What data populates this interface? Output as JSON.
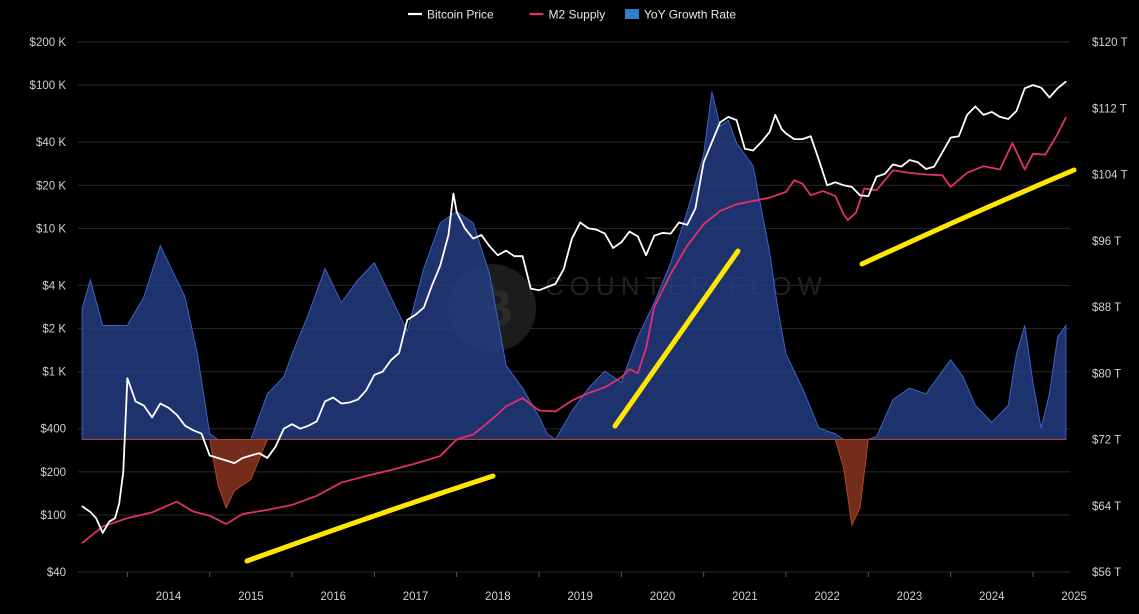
{
  "chart_data": {
    "type": "line",
    "title": "",
    "legend": [
      {
        "name": "Bitcoin Price",
        "color": "#ffffff",
        "marker": "line"
      },
      {
        "name": "M2 Supply",
        "color": "#e0306e",
        "marker": "line"
      },
      {
        "name": "YoY Growth Rate",
        "color": "#2e7fc9",
        "marker": "area"
      }
    ],
    "legend_position": "top-center",
    "watermark": "COUNTER FLOW",
    "grid": true,
    "x_axis": {
      "type": "time",
      "range": [
        2013.4,
        2025.45
      ],
      "ticks": [
        2014,
        2015,
        2016,
        2017,
        2018,
        2019,
        2020,
        2021,
        2022,
        2023,
        2024,
        2025
      ],
      "tick_labels": [
        "2014",
        "2015",
        "2016",
        "2017",
        "2018",
        "2019",
        "2020",
        "2021",
        "2022",
        "2023",
        "2024",
        "2025"
      ]
    },
    "y_left": {
      "scale": "log",
      "range": [
        40,
        200000
      ],
      "ticks": [
        40,
        100,
        200,
        400,
        1000,
        2000,
        4000,
        10000,
        20000,
        40000,
        100000,
        200000
      ],
      "tick_labels": [
        "$40",
        "$100",
        "$200",
        "$400",
        "$1 K",
        "$2 K",
        "$4 K",
        "$10 K",
        "$20 K",
        "$40 K",
        "$100 K",
        "$200 K"
      ]
    },
    "y_right": {
      "scale": "linear",
      "range": [
        56,
        120
      ],
      "unit": "T",
      "ticks": [
        56,
        64,
        72,
        80,
        88,
        96,
        104,
        112,
        120
      ],
      "tick_labels": [
        "$56 T",
        "$64 T",
        "$72 T",
        "$80 T",
        "$88 T",
        "$96 T",
        "$104 T",
        "$112 T",
        "$120 T"
      ]
    },
    "series": [
      {
        "name": "Bitcoin Price",
        "axis": "left",
        "color": "#ffffff",
        "x": [
          2013.45,
          2013.55,
          2013.62,
          2013.7,
          2013.78,
          2013.85,
          2013.9,
          2013.95,
          2014.0,
          2014.1,
          2014.2,
          2014.3,
          2014.4,
          2014.5,
          2014.6,
          2014.7,
          2014.8,
          2014.9,
          2015.0,
          2015.1,
          2015.2,
          2015.3,
          2015.4,
          2015.5,
          2015.6,
          2015.7,
          2015.8,
          2015.9,
          2016.0,
          2016.1,
          2016.2,
          2016.3,
          2016.4,
          2016.5,
          2016.6,
          2016.7,
          2016.8,
          2016.9,
          2017.0,
          2017.1,
          2017.2,
          2017.3,
          2017.4,
          2017.5,
          2017.6,
          2017.7,
          2017.8,
          2017.9,
          2017.96,
          2018.0,
          2018.1,
          2018.2,
          2018.3,
          2018.4,
          2018.5,
          2018.6,
          2018.7,
          2018.8,
          2018.9,
          2019.0,
          2019.1,
          2019.2,
          2019.3,
          2019.4,
          2019.5,
          2019.6,
          2019.7,
          2019.8,
          2019.9,
          2020.0,
          2020.1,
          2020.2,
          2020.3,
          2020.4,
          2020.5,
          2020.6,
          2020.7,
          2020.8,
          2020.9,
          2021.0,
          2021.1,
          2021.2,
          2021.3,
          2021.4,
          2021.5,
          2021.6,
          2021.7,
          2021.8,
          2021.87,
          2021.95,
          2022.0,
          2022.1,
          2022.2,
          2022.3,
          2022.4,
          2022.5,
          2022.6,
          2022.7,
          2022.8,
          2022.9,
          2023.0,
          2023.1,
          2023.2,
          2023.3,
          2023.4,
          2023.5,
          2023.6,
          2023.7,
          2023.8,
          2023.9,
          2024.0,
          2024.1,
          2024.2,
          2024.3,
          2024.4,
          2024.5,
          2024.6,
          2024.7,
          2024.8,
          2024.9,
          2025.0,
          2025.1,
          2025.2,
          2025.3,
          2025.4
        ],
        "values": [
          115,
          105,
          95,
          75,
          90,
          95,
          120,
          200,
          900,
          620,
          580,
          480,
          600,
          560,
          500,
          420,
          390,
          370,
          260,
          250,
          240,
          230,
          250,
          260,
          270,
          250,
          300,
          400,
          430,
          400,
          420,
          450,
          620,
          660,
          600,
          610,
          640,
          740,
          950,
          1000,
          1200,
          1350,
          2300,
          2500,
          2800,
          4000,
          5500,
          9000,
          17500,
          13000,
          10000,
          8500,
          9000,
          7500,
          6500,
          7000,
          6400,
          6400,
          3800,
          3700,
          3900,
          4100,
          5200,
          8500,
          11000,
          10000,
          9800,
          9200,
          7300,
          8000,
          9500,
          8800,
          6500,
          8900,
          9300,
          9200,
          11000,
          10600,
          13800,
          29000,
          40000,
          55000,
          60000,
          57000,
          36000,
          35000,
          40000,
          47000,
          62000,
          49000,
          46000,
          42000,
          42000,
          44000,
          30000,
          20000,
          21000,
          20000,
          19500,
          17000,
          16800,
          23000,
          24000,
          28000,
          27000,
          30000,
          29000,
          26000,
          27000,
          34000,
          43000,
          44000,
          62000,
          71000,
          62000,
          65000,
          60000,
          58000,
          66000,
          95000,
          100000,
          96000,
          82000,
          95000,
          106000
        ],
        "dashed_connections": false
      },
      {
        "name": "M2 Supply",
        "axis": "right",
        "color": "#e0306e",
        "x": [
          2013.45,
          2013.7,
          2014.0,
          2014.3,
          2014.6,
          2014.8,
          2015.0,
          2015.2,
          2015.4,
          2015.7,
          2016.0,
          2016.3,
          2016.6,
          2016.9,
          2017.2,
          2017.5,
          2017.8,
          2018.0,
          2018.2,
          2018.4,
          2018.6,
          2018.8,
          2019.0,
          2019.2,
          2019.4,
          2019.6,
          2019.8,
          2020.0,
          2020.1,
          2020.2,
          2020.3,
          2020.4,
          2020.6,
          2020.8,
          2021.0,
          2021.2,
          2021.4,
          2021.6,
          2021.8,
          2022.0,
          2022.1,
          2022.2,
          2022.3,
          2022.45,
          2022.6,
          2022.7,
          2022.75,
          2022.85,
          2022.95,
          2023.1,
          2023.3,
          2023.5,
          2023.7,
          2023.9,
          2024.0,
          2024.2,
          2024.4,
          2024.6,
          2024.75,
          2024.9,
          2025.0,
          2025.15,
          2025.3,
          2025.4
        ],
        "values": [
          59.5,
          61.5,
          62.5,
          63.2,
          64.5,
          63.3,
          62.8,
          61.8,
          63.0,
          63.5,
          64.1,
          65.2,
          66.8,
          67.6,
          68.3,
          69.1,
          70.0,
          72.0,
          72.6,
          74.2,
          76.0,
          77.0,
          75.5,
          75.4,
          76.7,
          77.6,
          78.3,
          79.5,
          80.5,
          80.0,
          83.0,
          88.0,
          92.0,
          95.4,
          98.0,
          99.6,
          100.4,
          100.8,
          101.2,
          101.9,
          103.3,
          102.9,
          101.5,
          102.0,
          101.4,
          99.2,
          98.5,
          99.4,
          102.3,
          102.1,
          104.5,
          104.2,
          104.0,
          103.9,
          102.5,
          104.2,
          105.0,
          104.6,
          107.8,
          104.6,
          106.5,
          106.4,
          108.9,
          110.9
        ],
        "dashed_connections": false
      },
      {
        "name": "YoY Growth Rate",
        "axis": "area",
        "color": "#2e5dbf",
        "negative_color": "#b0432a",
        "baseline_value": 0,
        "x": [
          2013.45,
          2013.55,
          2013.7,
          2013.85,
          2014.0,
          2014.2,
          2014.4,
          2014.5,
          2014.7,
          2014.85,
          2015.0,
          2015.1,
          2015.2,
          2015.3,
          2015.5,
          2015.7,
          2015.9,
          2016.0,
          2016.2,
          2016.4,
          2016.6,
          2016.8,
          2017.0,
          2017.2,
          2017.4,
          2017.6,
          2017.8,
          2018.0,
          2018.2,
          2018.4,
          2018.6,
          2018.8,
          2019.0,
          2019.1,
          2019.2,
          2019.4,
          2019.6,
          2019.8,
          2020.0,
          2020.2,
          2020.4,
          2020.6,
          2020.8,
          2021.0,
          2021.1,
          2021.2,
          2021.3,
          2021.4,
          2021.6,
          2021.8,
          2021.9,
          2022.0,
          2022.2,
          2022.4,
          2022.6,
          2022.7,
          2022.8,
          2022.9,
          2023.0,
          2023.1,
          2023.3,
          2023.5,
          2023.7,
          2023.9,
          2024.0,
          2024.15,
          2024.3,
          2024.5,
          2024.7,
          2024.8,
          2024.9,
          2025.0,
          2025.1,
          2025.2,
          2025.3,
          2025.4
        ],
        "values": [
          2.3,
          2.8,
          2.0,
          2.0,
          2.0,
          2.5,
          3.4,
          3.1,
          2.5,
          1.5,
          0.1,
          -0.8,
          -1.2,
          -0.9,
          -0.7,
          0.8,
          1.1,
          1.5,
          2.2,
          3.0,
          2.4,
          2.8,
          3.1,
          2.5,
          1.9,
          3.0,
          3.8,
          4.0,
          3.8,
          2.9,
          1.3,
          0.9,
          0.4,
          0.1,
          0.0,
          0.5,
          0.9,
          1.2,
          1.0,
          1.8,
          2.4,
          3.1,
          4.0,
          5.0,
          6.1,
          5.5,
          5.6,
          5.2,
          4.8,
          3.3,
          2.3,
          1.5,
          0.9,
          0.2,
          0.1,
          -0.5,
          -1.5,
          -1.2,
          0.0,
          0.05,
          0.7,
          0.9,
          0.8,
          1.2,
          1.4,
          1.1,
          0.6,
          0.3,
          0.6,
          1.5,
          2.0,
          1.0,
          0.2,
          0.8,
          1.8,
          2.0
        ]
      }
    ],
    "annotations": [
      {
        "type": "hand-drawn line",
        "color": "#ffe600"
      },
      {
        "type": "hand-drawn line",
        "color": "#ffe600"
      },
      {
        "type": "hand-drawn line",
        "color": "#ffe600"
      }
    ]
  }
}
